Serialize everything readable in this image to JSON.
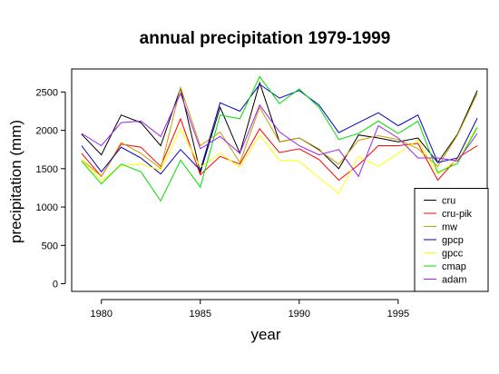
{
  "chart_data": {
    "type": "line",
    "title": "annual precipitation 1979-1999",
    "xlabel": "year",
    "ylabel": "precipitation (mm)",
    "xlim": [
      1978.5,
      1999.5
    ],
    "ylim": [
      -100,
      2800
    ],
    "x_ticks": [
      1980,
      1985,
      1990,
      1995
    ],
    "y_ticks": [
      0,
      500,
      1000,
      1500,
      2000,
      2500
    ],
    "grid": false,
    "legend_position": "bottom-right",
    "x": [
      1979,
      1980,
      1981,
      1982,
      1983,
      1984,
      1985,
      1986,
      1987,
      1988,
      1989,
      1990,
      1991,
      1992,
      1993,
      1994,
      1995,
      1996,
      1997,
      1998,
      1999
    ],
    "series": [
      {
        "name": "cru",
        "color": "#000000",
        "values": [
          1950,
          1680,
          2200,
          2100,
          1800,
          2550,
          1450,
          2300,
          1700,
          2620,
          1850,
          1900,
          1750,
          1500,
          1940,
          1900,
          1850,
          1900,
          1580,
          1950,
          2520
        ]
      },
      {
        "name": "cru-pik",
        "color": "#ff0000",
        "values": [
          1700,
          1400,
          1820,
          1780,
          1530,
          2150,
          1420,
          1660,
          1560,
          2020,
          1710,
          1760,
          1620,
          1350,
          1550,
          1800,
          1800,
          1830,
          1350,
          1640,
          1800
        ]
      },
      {
        "name": "mw",
        "color": "#c8a000",
        "values": [
          1620,
          1400,
          1840,
          1700,
          1500,
          2560,
          1800,
          1980,
          1580,
          2300,
          1850,
          1900,
          1740,
          1560,
          1870,
          1930,
          1880,
          1760,
          1530,
          1940,
          2480
        ]
      },
      {
        "name": "gpcp",
        "color": "#0000c8",
        "values": [
          1800,
          1460,
          1780,
          1640,
          1430,
          1750,
          1480,
          2360,
          2250,
          2600,
          2420,
          2520,
          2330,
          1970,
          2100,
          2230,
          2060,
          2200,
          1580,
          1640,
          2160
        ]
      },
      {
        "name": "gpcc",
        "color": "#ffff00",
        "values": [
          1620,
          1340,
          1540,
          1560,
          1480,
          2020,
          1520,
          1700,
          1520,
          1940,
          1610,
          1600,
          1380,
          1180,
          1660,
          1530,
          1700,
          1870,
          1430,
          1620,
          2050
        ]
      },
      {
        "name": "cmap",
        "color": "#00e000",
        "values": [
          1600,
          1300,
          1560,
          1460,
          1080,
          1610,
          1260,
          2200,
          2150,
          2700,
          2350,
          2540,
          2300,
          1880,
          1960,
          2120,
          1960,
          2120,
          1450,
          1570,
          2040
        ]
      },
      {
        "name": "adam",
        "color": "#a020f0",
        "values": [
          1960,
          1800,
          2100,
          2120,
          1920,
          2480,
          1760,
          1920,
          1700,
          2330,
          1980,
          1800,
          1680,
          1750,
          1400,
          2060,
          1900,
          1640,
          1640,
          1600,
          1960
        ]
      }
    ]
  }
}
